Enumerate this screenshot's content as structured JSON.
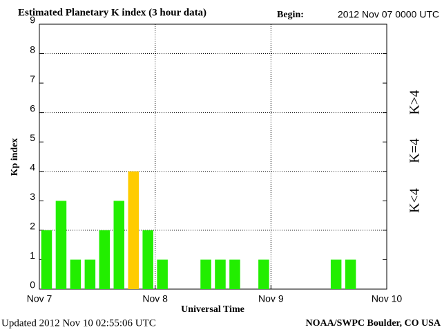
{
  "chart_data": {
    "type": "bar",
    "title": "Estimated Planetary K index (3 hour data)",
    "begin_label": "Begin:",
    "begin": "2012 Nov 07 0000 UTC",
    "ylabel": "Kp index",
    "xlabel": "Universal Time",
    "updated": "Updated 2012 Nov 10 02:55:06 UTC",
    "source": "NOAA/SWPC Boulder, CO USA",
    "categories": [
      null,
      null,
      null,
      null,
      null,
      null,
      null,
      null,
      null,
      null,
      null,
      null,
      null,
      null,
      null,
      null,
      null,
      null,
      null,
      null,
      null,
      null,
      null,
      null
    ],
    "values": [
      2,
      3,
      1,
      1,
      2,
      3,
      4,
      2,
      1,
      0,
      0,
      1,
      1,
      1,
      0,
      1,
      0,
      0,
      0,
      0,
      1,
      1,
      0,
      0
    ],
    "threshold": 4,
    "colors": {
      "below": "#22ee00",
      "equal": "#ffcc00",
      "above": "#ff2200"
    },
    "legend": [
      {
        "label": "K<4",
        "color": "#22ee00"
      },
      {
        "label": "K=4",
        "color": "#ffcc00"
      },
      {
        "label": "K>4",
        "color": "#ff2200"
      }
    ],
    "xlim": [
      0,
      24
    ],
    "xticks": [
      {
        "value": 0,
        "label": "Nov 7"
      },
      {
        "value": 8,
        "label": "Nov 8"
      },
      {
        "value": 16,
        "label": "Nov 9"
      },
      {
        "value": 24,
        "label": "Nov 10"
      }
    ],
    "xgrid": [
      8,
      16
    ],
    "ylim": [
      0,
      9
    ],
    "yticks": [
      0,
      1,
      2,
      3,
      4,
      5,
      6,
      7,
      8,
      9
    ],
    "ygrid": [
      2,
      4,
      6,
      8
    ]
  }
}
